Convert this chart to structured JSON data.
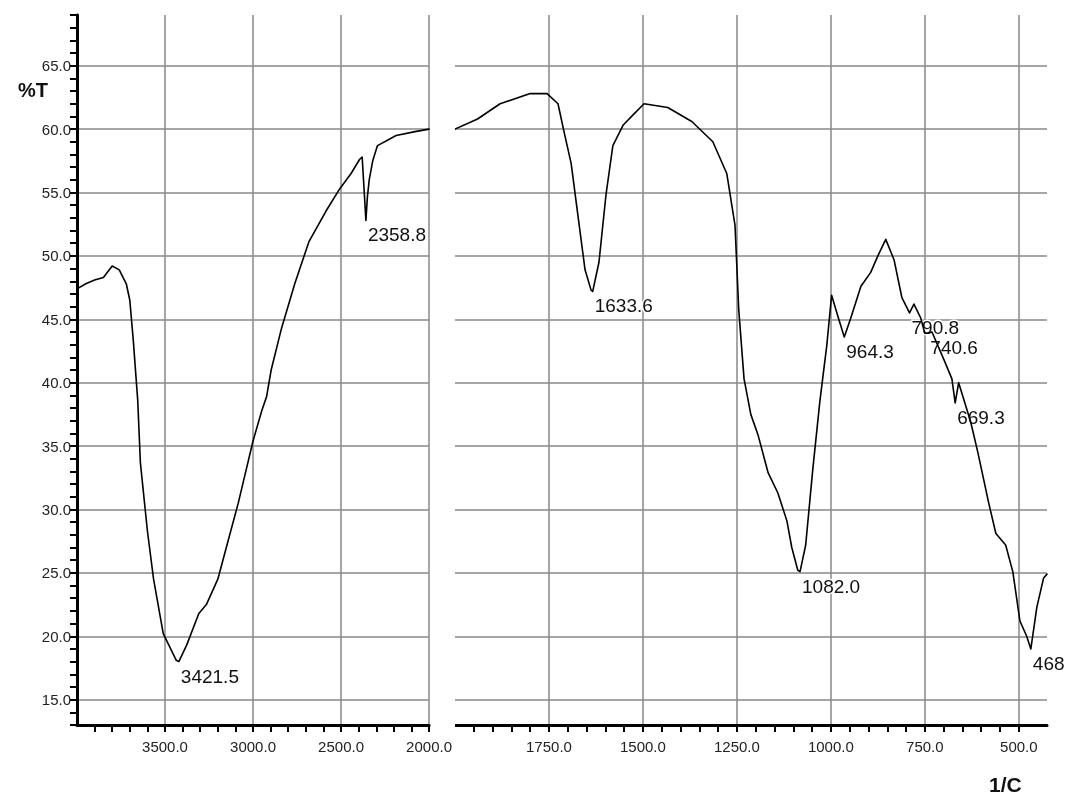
{
  "chart_data": [
    {
      "type": "line",
      "ylabel": "%T",
      "grid": true,
      "marker": "none",
      "line_style": "solid",
      "xlim": [
        4000,
        2000
      ],
      "xticks": [
        {
          "value": 3900,
          "label": null
        },
        {
          "value": 3800,
          "label": null
        },
        {
          "value": 3700,
          "label": null
        },
        {
          "value": 3600,
          "label": null
        },
        {
          "value": 3500,
          "label": "3500.0"
        },
        {
          "value": 3400,
          "label": null
        },
        {
          "value": 3300,
          "label": null
        },
        {
          "value": 3200,
          "label": null
        },
        {
          "value": 3100,
          "label": null
        },
        {
          "value": 3000,
          "label": "3000.0"
        },
        {
          "value": 2900,
          "label": null
        },
        {
          "value": 2800,
          "label": null
        },
        {
          "value": 2700,
          "label": null
        },
        {
          "value": 2600,
          "label": null
        },
        {
          "value": 2500,
          "label": "2500.0"
        },
        {
          "value": 2400,
          "label": null
        },
        {
          "value": 2300,
          "label": null
        },
        {
          "value": 2200,
          "label": null
        },
        {
          "value": 2100,
          "label": null
        },
        {
          "value": 2000,
          "label": "2000.0"
        }
      ],
      "ylim": [
        13,
        69
      ],
      "yticks": [
        {
          "value": 13,
          "label": null
        },
        {
          "value": 14,
          "label": null
        },
        {
          "value": 15,
          "label": "15.0"
        },
        {
          "value": 16,
          "label": null
        },
        {
          "value": 17,
          "label": null
        },
        {
          "value": 18,
          "label": null
        },
        {
          "value": 19,
          "label": null
        },
        {
          "value": 20,
          "label": "20.0"
        },
        {
          "value": 21,
          "label": null
        },
        {
          "value": 22,
          "label": null
        },
        {
          "value": 23,
          "label": null
        },
        {
          "value": 24,
          "label": null
        },
        {
          "value": 25,
          "label": "25.0"
        },
        {
          "value": 26,
          "label": null
        },
        {
          "value": 27,
          "label": null
        },
        {
          "value": 28,
          "label": null
        },
        {
          "value": 29,
          "label": null
        },
        {
          "value": 30,
          "label": "30.0"
        },
        {
          "value": 31,
          "label": null
        },
        {
          "value": 32,
          "label": null
        },
        {
          "value": 33,
          "label": null
        },
        {
          "value": 34,
          "label": null
        },
        {
          "value": 35,
          "label": "35.0"
        },
        {
          "value": 36,
          "label": null
        },
        {
          "value": 37,
          "label": null
        },
        {
          "value": 38,
          "label": null
        },
        {
          "value": 39,
          "label": null
        },
        {
          "value": 40,
          "label": "40.0"
        },
        {
          "value": 41,
          "label": null
        },
        {
          "value": 42,
          "label": null
        },
        {
          "value": 43,
          "label": null
        },
        {
          "value": 44,
          "label": null
        },
        {
          "value": 45,
          "label": "45.0"
        },
        {
          "value": 46,
          "label": null
        },
        {
          "value": 47,
          "label": null
        },
        {
          "value": 48,
          "label": null
        },
        {
          "value": 49,
          "label": null
        },
        {
          "value": 50,
          "label": "50.0"
        },
        {
          "value": 51,
          "label": null
        },
        {
          "value": 52,
          "label": null
        },
        {
          "value": 53,
          "label": null
        },
        {
          "value": 54,
          "label": null
        },
        {
          "value": 55,
          "label": "55.0"
        },
        {
          "value": 56,
          "label": null
        },
        {
          "value": 57,
          "label": null
        },
        {
          "value": 58,
          "label": null
        },
        {
          "value": 59,
          "label": null
        },
        {
          "value": 60,
          "label": "60.0"
        },
        {
          "value": 61,
          "label": null
        },
        {
          "value": 62,
          "label": null
        },
        {
          "value": 63,
          "label": null
        },
        {
          "value": 64,
          "label": null
        },
        {
          "value": 65,
          "label": "65.0"
        },
        {
          "value": 66,
          "label": null
        },
        {
          "value": 67,
          "label": null
        },
        {
          "value": 68,
          "label": null
        },
        {
          "value": 69,
          "label": null
        }
      ],
      "series": [
        {
          "color": "#000000",
          "x": [
            4000,
            3950,
            3900,
            3850,
            3800,
            3760,
            3720,
            3700,
            3680,
            3655,
            3640,
            3600,
            3565,
            3510,
            3436,
            3421.5,
            3377,
            3308,
            3265,
            3200,
            3148,
            3084,
            3000,
            2950,
            2923,
            2897,
            2838,
            2763,
            2683,
            2587,
            2507,
            2443,
            2395,
            2380,
            2358.8,
            2350,
            2340,
            2320,
            2293,
            2187,
            2080,
            2000
          ],
          "values": [
            47.4,
            47.8,
            48.1,
            48.3,
            49.2,
            48.9,
            47.8,
            46.5,
            43.3,
            38.6,
            33.7,
            28.3,
            24.5,
            20.2,
            18.1,
            18.0,
            19.3,
            21.8,
            22.5,
            24.5,
            27.2,
            30.5,
            35.4,
            37.8,
            38.9,
            41.0,
            44.3,
            47.8,
            51.1,
            53.5,
            55.3,
            56.5,
            57.6,
            57.8,
            52.8,
            54.7,
            56.0,
            57.5,
            58.7,
            59.5,
            59.8,
            60.0
          ]
        }
      ],
      "annotations": [
        {
          "text": "3421.5",
          "x": 3421.5,
          "y": 18.0
        },
        {
          "text": "2358.8",
          "x": 2358.8,
          "y": 52.8
        }
      ]
    },
    {
      "type": "line",
      "xlabel": "1/C",
      "grid": true,
      "marker": "none",
      "line_style": "solid",
      "tick_labels": "x",
      "xlim": [
        2000,
        425
      ],
      "xticks": [
        {
          "value": 1950,
          "label": null
        },
        {
          "value": 1900,
          "label": null
        },
        {
          "value": 1850,
          "label": null
        },
        {
          "value": 1800,
          "label": null
        },
        {
          "value": 1750,
          "label": "1750.0"
        },
        {
          "value": 1700,
          "label": null
        },
        {
          "value": 1650,
          "label": null
        },
        {
          "value": 1600,
          "label": null
        },
        {
          "value": 1550,
          "label": null
        },
        {
          "value": 1500,
          "label": "1500.0"
        },
        {
          "value": 1450,
          "label": null
        },
        {
          "value": 1400,
          "label": null
        },
        {
          "value": 1350,
          "label": null
        },
        {
          "value": 1300,
          "label": null
        },
        {
          "value": 1250,
          "label": "1250.0"
        },
        {
          "value": 1200,
          "label": null
        },
        {
          "value": 1150,
          "label": null
        },
        {
          "value": 1100,
          "label": null
        },
        {
          "value": 1050,
          "label": null
        },
        {
          "value": 1000,
          "label": "1000.0"
        },
        {
          "value": 950,
          "label": null
        },
        {
          "value": 900,
          "label": null
        },
        {
          "value": 850,
          "label": null
        },
        {
          "value": 800,
          "label": null
        },
        {
          "value": 750,
          "label": "750.0"
        },
        {
          "value": 700,
          "label": null
        },
        {
          "value": 650,
          "label": null
        },
        {
          "value": 600,
          "label": null
        },
        {
          "value": 550,
          "label": null
        },
        {
          "value": 500,
          "label": "500.0"
        }
      ],
      "ylim": [
        13,
        69
      ],
      "yticks": [
        {
          "value": 15,
          "label": null
        },
        {
          "value": 20,
          "label": null
        },
        {
          "value": 25,
          "label": null
        },
        {
          "value": 30,
          "label": null
        },
        {
          "value": 35,
          "label": null
        },
        {
          "value": 40,
          "label": null
        },
        {
          "value": 45,
          "label": null
        },
        {
          "value": 50,
          "label": null
        },
        {
          "value": 55,
          "label": null
        },
        {
          "value": 60,
          "label": null
        },
        {
          "value": 65,
          "label": null
        }
      ],
      "series": [
        {
          "color": "#000000",
          "x": [
            2000,
            1940,
            1880,
            1800,
            1755,
            1726,
            1710,
            1691,
            1673,
            1654,
            1638,
            1633.6,
            1617,
            1598,
            1580,
            1553,
            1527,
            1497,
            1434,
            1370,
            1314,
            1277,
            1255,
            1245,
            1231,
            1213,
            1194,
            1167,
            1141,
            1117,
            1104,
            1088,
            1082,
            1067,
            1048,
            1029,
            1011,
            998,
            980,
            964.3,
            947,
            920,
            894,
            875,
            854,
            832,
            811,
            790.8,
            779,
            761,
            750,
            740.6,
            731,
            699,
            678,
            669.3,
            660,
            628,
            609,
            580,
            561,
            535,
            516,
            497,
            479,
            468,
            452,
            434,
            425
          ],
          "values": [
            60.0,
            60.8,
            62.0,
            62.8,
            62.8,
            62.0,
            59.8,
            57.3,
            53.2,
            48.9,
            47.3,
            47.2,
            49.5,
            54.9,
            58.7,
            60.3,
            61.1,
            62.0,
            61.7,
            60.6,
            59.0,
            56.5,
            52.4,
            45.7,
            40.3,
            37.5,
            35.9,
            32.9,
            31.3,
            29.1,
            27.0,
            25.2,
            25.1,
            27.2,
            33.2,
            38.6,
            42.9,
            46.9,
            45.1,
            43.6,
            45.1,
            47.6,
            48.7,
            50.0,
            51.3,
            49.7,
            46.7,
            45.5,
            46.2,
            45.1,
            43.9,
            43.9,
            44.0,
            41.8,
            40.3,
            38.4,
            40.0,
            36.9,
            34.5,
            30.5,
            28.1,
            27.2,
            25.1,
            21.2,
            20.0,
            19.0,
            22.3,
            24.6,
            24.9
          ]
        }
      ],
      "annotations": [
        {
          "text": "1633.6",
          "x": 1633.6,
          "y": 47.2
        },
        {
          "text": "1082.0",
          "x": 1082,
          "y": 25.1
        },
        {
          "text": "964.3",
          "x": 964.3,
          "y": 43.6
        },
        {
          "text": "790.8",
          "x": 790.8,
          "y": 45.5
        },
        {
          "text": "740.6",
          "x": 740.6,
          "y": 43.9
        },
        {
          "text": "669.3",
          "x": 669.3,
          "y": 38.4
        },
        {
          "text": "468",
          "x": 468,
          "y": 19.0
        }
      ]
    }
  ]
}
